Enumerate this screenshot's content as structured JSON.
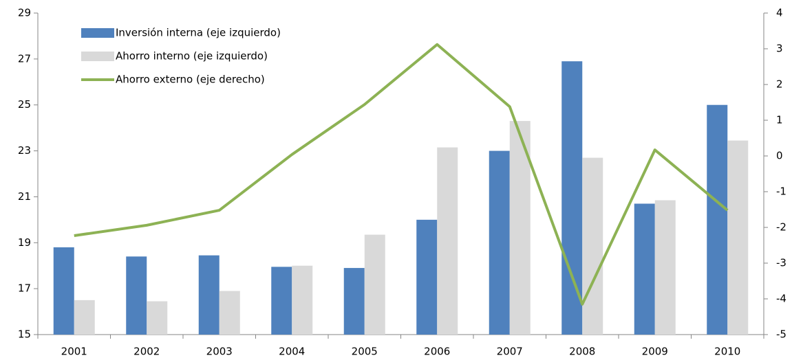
{
  "chart_data": {
    "type": "bar",
    "categories": [
      "2001",
      "2002",
      "2003",
      "2004",
      "2005",
      "2006",
      "2007",
      "2008",
      "2009",
      "2010"
    ],
    "series": [
      {
        "name": "Inversión interna (eje izquierdo)",
        "color": "#4f81bd",
        "values": [
          18.8,
          18.4,
          18.45,
          17.95,
          17.9,
          20.0,
          23.0,
          26.9,
          20.7,
          25.0
        ]
      },
      {
        "name": "Ahorro interno (eje izquierdo)",
        "color": "#d9d9d9",
        "values": [
          16.5,
          16.45,
          16.9,
          18.0,
          19.35,
          23.15,
          24.3,
          22.7,
          20.85,
          23.45
        ]
      },
      {
        "name": "Ahorro externo (eje derecho)",
        "color": "#8db254",
        "type": "line",
        "axis": "y2",
        "values": [
          -2.23,
          -1.94,
          -1.52,
          0.04,
          1.44,
          3.12,
          1.38,
          -4.15,
          0.17,
          -1.52
        ]
      }
    ],
    "ylim": [
      15,
      29
    ],
    "yticks": [
      15,
      17,
      19,
      21,
      23,
      25,
      27,
      29
    ],
    "y2lim": [
      -5,
      4
    ],
    "y2ticks": [
      -5,
      -4,
      -3,
      -2,
      -1,
      0,
      1,
      2,
      3,
      4
    ],
    "grid": false,
    "legend": "top-left"
  }
}
